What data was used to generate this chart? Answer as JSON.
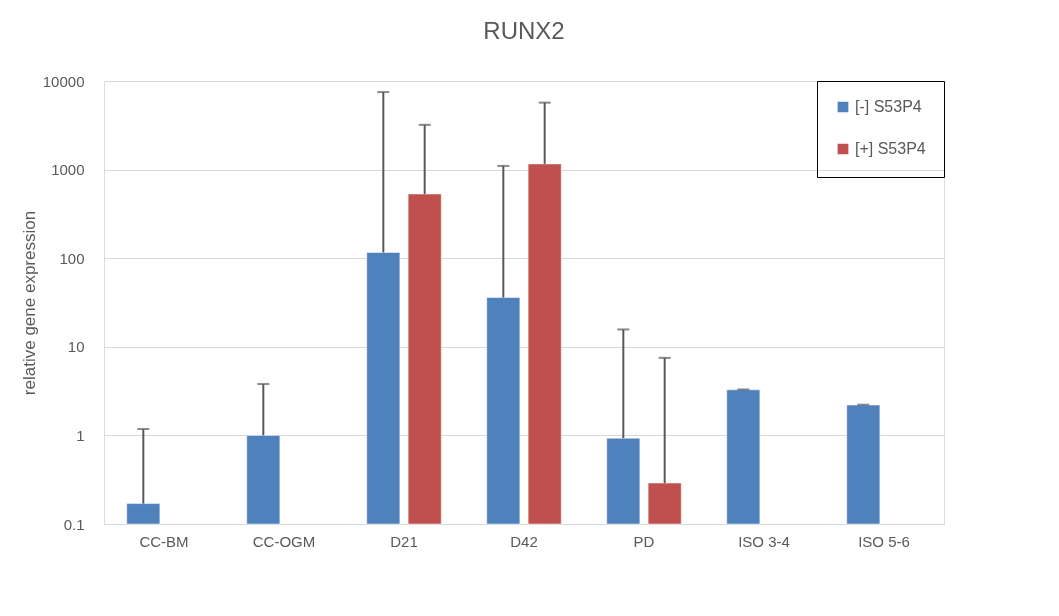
{
  "chart_data": {
    "type": "bar",
    "title": "RUNX2",
    "ylabel": "relative gene expression",
    "categories": [
      "CC-BM",
      "CC-OGM",
      "D21",
      "D42",
      "PD",
      "ISO 3-4",
      "ISO 5-6"
    ],
    "series": [
      {
        "name": "[-] S53P4",
        "color": "#4f81bd",
        "values": [
          0.17,
          1.0,
          116,
          36,
          0.93,
          3.27,
          2.2
        ],
        "errors": [
          [
            0.17,
            1.18
          ],
          [
            1.0,
            3.8
          ],
          [
            116,
            7500
          ],
          [
            36,
            1100
          ],
          [
            0.93,
            15.7
          ],
          [
            3.27,
            3.3
          ],
          [
            2.2,
            2.22
          ]
        ]
      },
      {
        "name": "[+] S53P4",
        "color": "#c0504d",
        "values": [
          null,
          null,
          530,
          1160,
          0.29,
          null,
          null
        ],
        "errors": [
          null,
          null,
          [
            530,
            3200
          ],
          [
            1160,
            5700
          ],
          [
            0.29,
            7.5
          ],
          null,
          null
        ]
      }
    ],
    "log": "y",
    "ylim": [
      0.1,
      10000
    ],
    "yticks": [
      0.1,
      1,
      10,
      100,
      1000,
      10000
    ],
    "grid": "y",
    "legend": "top right"
  }
}
